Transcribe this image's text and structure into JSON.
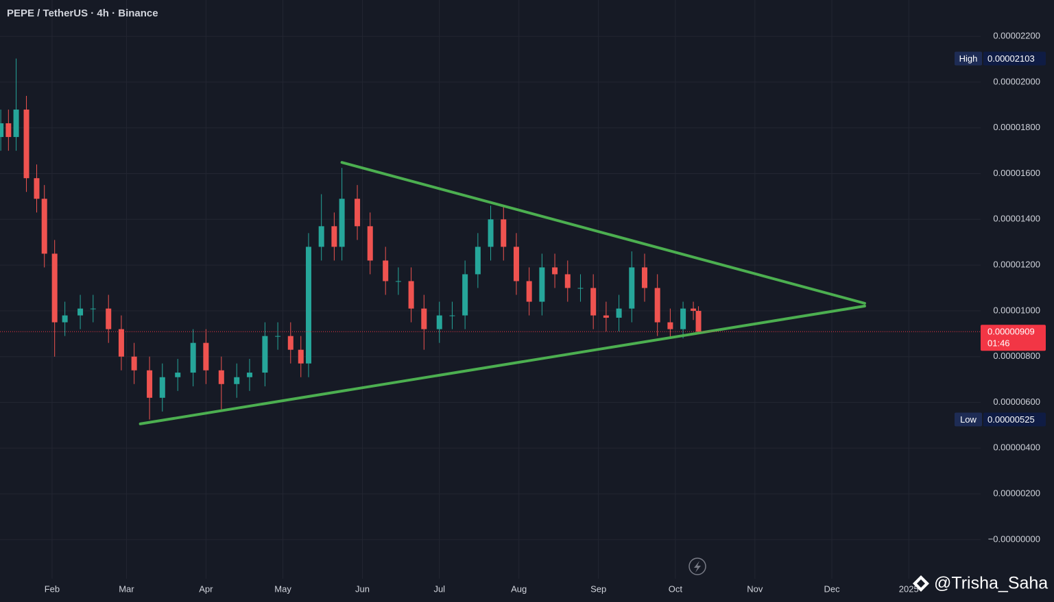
{
  "header": {
    "title": "PEPE / TetherUS · 4h · Binance"
  },
  "chart_data": {
    "type": "candlestick",
    "x": [
      11,
      14,
      17,
      21,
      25,
      28,
      32,
      36,
      42,
      47,
      53,
      58,
      63,
      69,
      74,
      80,
      86,
      91,
      97,
      103,
      108,
      114,
      119,
      124,
      128,
      131,
      136,
      141,
      144,
      150,
      155,
      161,
      166,
      171,
      176,
      182,
      187,
      192,
      197,
      202,
      207,
      212,
      217,
      222,
      227,
      232,
      237,
      242,
      247,
      252,
      257,
      262,
      267,
      272,
      277,
      281,
      283
    ],
    "open": [
      1.76e-05,
      1.82e-05,
      1.76e-05,
      1.88e-05,
      1.58e-05,
      1.49e-05,
      1.25e-05,
      9.5e-06,
      9.8e-06,
      1.01e-05,
      1.01e-05,
      9.2e-06,
      8e-06,
      7.4e-06,
      6.2e-06,
      7.1e-06,
      7.3e-06,
      8.6e-06,
      7.4e-06,
      6.8e-06,
      7.1e-06,
      7.3e-06,
      8.9e-06,
      8.9e-06,
      8.3e-06,
      7.7e-06,
      1.28e-05,
      1.37e-05,
      1.28e-05,
      1.49e-05,
      1.37e-05,
      1.22e-05,
      1.13e-05,
      1.13e-05,
      1.01e-05,
      9.2e-06,
      9.8e-06,
      9.8e-06,
      1.16e-05,
      1.28e-05,
      1.4e-05,
      1.28e-05,
      1.13e-05,
      1.04e-05,
      1.19e-05,
      1.16e-05,
      1.1e-05,
      1.1e-05,
      9.8e-06,
      9.7e-06,
      1.01e-05,
      1.19e-05,
      1.1e-05,
      9.5e-06,
      9.2e-06,
      1.01e-05,
      1e-05
    ],
    "high": [
      1.88e-05,
      1.88e-05,
      2.103e-05,
      1.94e-05,
      1.64e-05,
      1.55e-05,
      1.31e-05,
      1.04e-05,
      1.07e-05,
      1.07e-05,
      1.07e-05,
      9.8e-06,
      8.6e-06,
      8e-06,
      7.7e-06,
      7.9e-06,
      9.2e-06,
      9.2e-06,
      8e-06,
      7.7e-06,
      7.9e-06,
      9.5e-06,
      9.5e-06,
      9.5e-06,
      8.9e-06,
      1.34e-05,
      1.51e-05,
      1.43e-05,
      1.625e-05,
      1.55e-05,
      1.43e-05,
      1.28e-05,
      1.19e-05,
      1.19e-05,
      1.07e-05,
      1.04e-05,
      1.04e-05,
      1.22e-05,
      1.34e-05,
      1.46e-05,
      1.46e-05,
      1.34e-05,
      1.19e-05,
      1.25e-05,
      1.25e-05,
      1.22e-05,
      1.16e-05,
      1.16e-05,
      1.04e-05,
      1.07e-05,
      1.26e-05,
      1.25e-05,
      1.16e-05,
      1.01e-05,
      1.04e-05,
      1.04e-05,
      1.02e-05
    ],
    "low": [
      1.7e-05,
      1.7e-05,
      1.7e-05,
      1.52e-05,
      1.43e-05,
      1.19e-05,
      8e-06,
      8.9e-06,
      9.2e-06,
      9.5e-06,
      8.6e-06,
      7.4e-06,
      6.8e-06,
      5.25e-06,
      5.6e-06,
      6.5e-06,
      6.7e-06,
      6.8e-06,
      5.7e-06,
      6.2e-06,
      6.5e-06,
      6.7e-06,
      8.3e-06,
      7.7e-06,
      7.1e-06,
      7.1e-06,
      1.22e-05,
      1.22e-05,
      1.22e-05,
      1.31e-05,
      1.16e-05,
      1.07e-05,
      1.07e-05,
      9.5e-06,
      8.3e-06,
      8.6e-06,
      9.2e-06,
      9.2e-06,
      1.1e-05,
      1.22e-05,
      1.22e-05,
      1.07e-05,
      9.8e-06,
      9.8e-06,
      1.1e-05,
      1.04e-05,
      1.04e-05,
      9.2e-06,
      9.1e-06,
      9.1e-06,
      9.5e-06,
      1.04e-05,
      8.9e-06,
      8.8e-06,
      8.8e-06,
      9.6e-06,
      9e-06
    ],
    "close": [
      1.82e-05,
      1.76e-05,
      1.88e-05,
      1.58e-05,
      1.49e-05,
      1.25e-05,
      9.5e-06,
      9.8e-06,
      1.01e-05,
      1.01e-05,
      9.2e-06,
      8e-06,
      7.4e-06,
      6.2e-06,
      7.1e-06,
      7.3e-06,
      8.6e-06,
      7.4e-06,
      6.8e-06,
      7.1e-06,
      7.3e-06,
      8.9e-06,
      8.9e-06,
      8.3e-06,
      7.7e-06,
      1.28e-05,
      1.37e-05,
      1.28e-05,
      1.49e-05,
      1.37e-05,
      1.22e-05,
      1.13e-05,
      1.13e-05,
      1.01e-05,
      9.2e-06,
      9.8e-06,
      9.8e-06,
      1.16e-05,
      1.28e-05,
      1.4e-05,
      1.28e-05,
      1.13e-05,
      1.04e-05,
      1.19e-05,
      1.16e-05,
      1.1e-05,
      1.1e-05,
      9.8e-06,
      9.7e-06,
      1.01e-05,
      1.19e-05,
      1.1e-05,
      9.5e-06,
      9.2e-06,
      1.01e-05,
      1e-05,
      9.09e-06
    ],
    "up_color": "#26a69a",
    "down_color": "#ef5350",
    "xlim": [
      10.7,
      393
    ],
    "ylim": [
      -1.71e-06,
      2.359e-05
    ],
    "xticks": [
      {
        "value": 31,
        "label": "Feb"
      },
      {
        "value": 60,
        "label": "Mar"
      },
      {
        "value": 91,
        "label": "Apr"
      },
      {
        "value": 121,
        "label": "May"
      },
      {
        "value": 152,
        "label": "Jun"
      },
      {
        "value": 182,
        "label": "Jul"
      },
      {
        "value": 213,
        "label": "Aug"
      },
      {
        "value": 244,
        "label": "Sep"
      },
      {
        "value": 274,
        "label": "Oct"
      },
      {
        "value": 305,
        "label": "Nov"
      },
      {
        "value": 335,
        "label": "Dec"
      },
      {
        "value": 365,
        "label": "2025"
      }
    ],
    "yticks": [
      {
        "value": 2.2e-05,
        "label": "0.00002200"
      },
      {
        "value": 2e-05,
        "label": "0.00002000"
      },
      {
        "value": 1.8e-05,
        "label": "0.00001800"
      },
      {
        "value": 1.6e-05,
        "label": "0.00001600"
      },
      {
        "value": 1.4e-05,
        "label": "0.00001400"
      },
      {
        "value": 1.2e-05,
        "label": "0.00001200"
      },
      {
        "value": 1e-05,
        "label": "0.00001000"
      },
      {
        "value": 8e-06,
        "label": "0.00000800"
      },
      {
        "value": 6e-06,
        "label": "0.00000600"
      },
      {
        "value": 4e-06,
        "label": "0.00000400"
      },
      {
        "value": 2e-06,
        "label": "0.00000200"
      },
      {
        "value": 0,
        "label": "−0.00000000"
      }
    ],
    "grid": true,
    "high_marker": {
      "label": "High",
      "value": 2.103e-05,
      "value_label": "0.00002103"
    },
    "low_marker": {
      "label": "Low",
      "value": 5.25e-06,
      "value_label": "0.00000525"
    },
    "last_price": {
      "value": 9.09e-06,
      "value_label": "0.00000909",
      "countdown": "01:46",
      "color": "#f23645"
    },
    "trendlines": [
      {
        "color": "#4caf50",
        "x": [
          144,
          347.8
        ],
        "y": [
          1.649e-05,
          1.033e-05
        ]
      },
      {
        "color": "#4caf50",
        "x": [
          65.4,
          347.8
        ],
        "y": [
          5.06e-06,
          1.021e-05
        ]
      }
    ]
  },
  "watermark": "@Trisha_Saha"
}
